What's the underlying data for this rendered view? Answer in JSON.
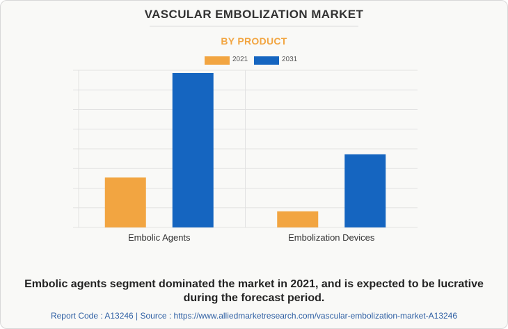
{
  "header": {
    "title": "VASCULAR EMBOLIZATION MARKET",
    "subtitle": "BY PRODUCT"
  },
  "colors": {
    "series_2021": "#f2a541",
    "series_2031": "#1565c0",
    "subtitle": "#f2a541",
    "footer_link": "#2e5fa3"
  },
  "chart_data": {
    "type": "bar",
    "categories": [
      "Embolic Agents",
      "Embolization Devices"
    ],
    "series": [
      {
        "name": "2021",
        "values": [
          2.54,
          0.82
        ]
      },
      {
        "name": "2031",
        "values": [
          7.86,
          3.72
        ]
      }
    ],
    "ylim": [
      0,
      8
    ],
    "y_gridlines": 8,
    "y_tick_labels_shown": false,
    "grid": true,
    "legend_position": "top-center"
  },
  "caption": "Embolic agents segment dominated the market in 2021, and is expected to be lucrative during the forecast period.",
  "footer": "Report Code : A13246  |  Source : https://www.alliedmarketresearch.com/vascular-embolization-market-A13246"
}
